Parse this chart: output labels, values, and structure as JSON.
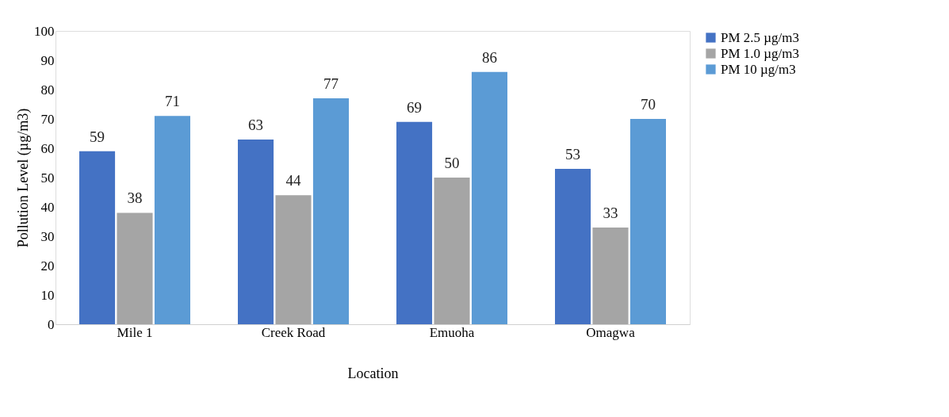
{
  "chart_data": {
    "type": "bar",
    "xlabel": "Location",
    "ylabel": "Pollution Level (µg/m3)",
    "categories": [
      "Mile 1",
      "Creek Road",
      "Emuoha",
      "Omagwa"
    ],
    "series": [
      {
        "name": "PM 2.5 µg/m3",
        "color": "#4472c4",
        "values": [
          59,
          63,
          69,
          53
        ]
      },
      {
        "name": "PM 1.0 µg/m3",
        "color": "#a5a5a5",
        "values": [
          38,
          44,
          50,
          33
        ]
      },
      {
        "name": "PM 10 µg/m3",
        "color": "#5b9bd5",
        "values": [
          71,
          77,
          86,
          70
        ]
      }
    ],
    "ylim": [
      0,
      100
    ],
    "yticks": [
      0,
      10,
      20,
      30,
      40,
      50,
      60,
      70,
      80,
      90,
      100
    ],
    "grid": false,
    "legend": "right",
    "data_labels": true
  }
}
